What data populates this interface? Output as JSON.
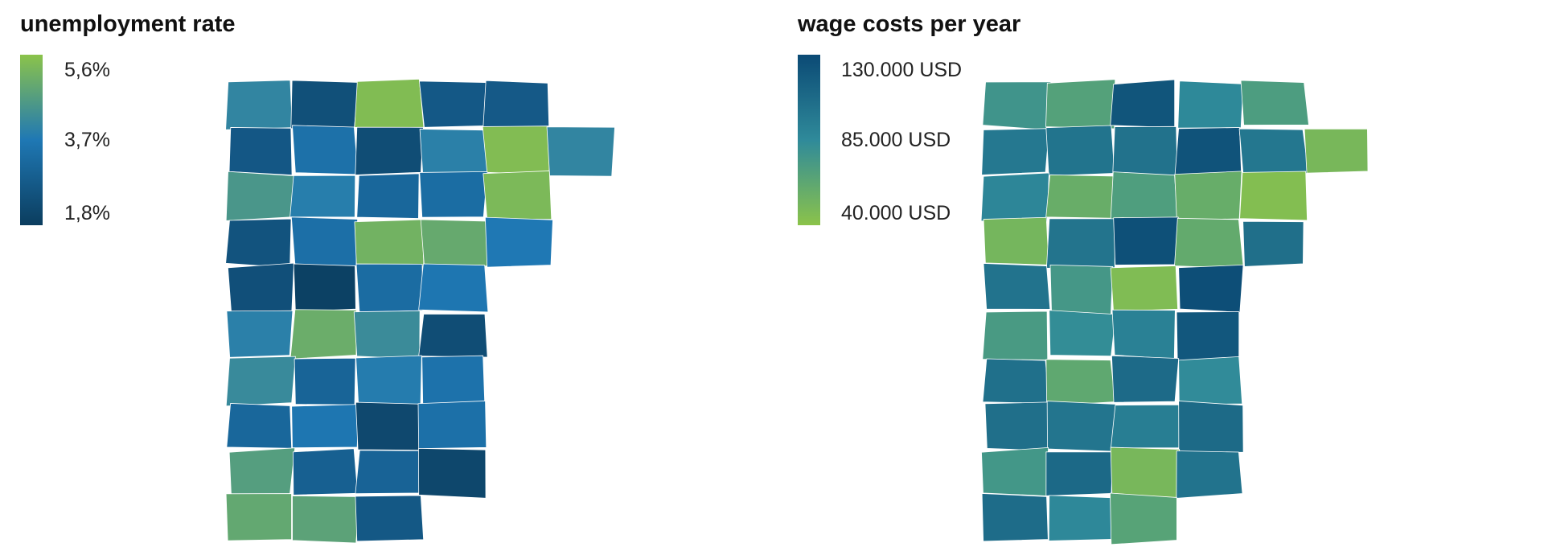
{
  "maps": {
    "unemployment": {
      "title": "unemployment rate",
      "legend": {
        "high": "5,6%",
        "mid": "3,7%",
        "low": "1,8%"
      },
      "colors": {
        "high": "#8bc34a",
        "mid": "#1f78b4",
        "low": "#0b3d5e"
      }
    },
    "wages": {
      "title": "wage costs per year",
      "legend": {
        "high": "130.000 USD",
        "mid": "85.000 USD",
        "low": "40.000 USD"
      },
      "colors": {
        "high": "#0b4a75",
        "mid": "#2f8a9a",
        "low": "#8bc34a"
      }
    }
  }
}
